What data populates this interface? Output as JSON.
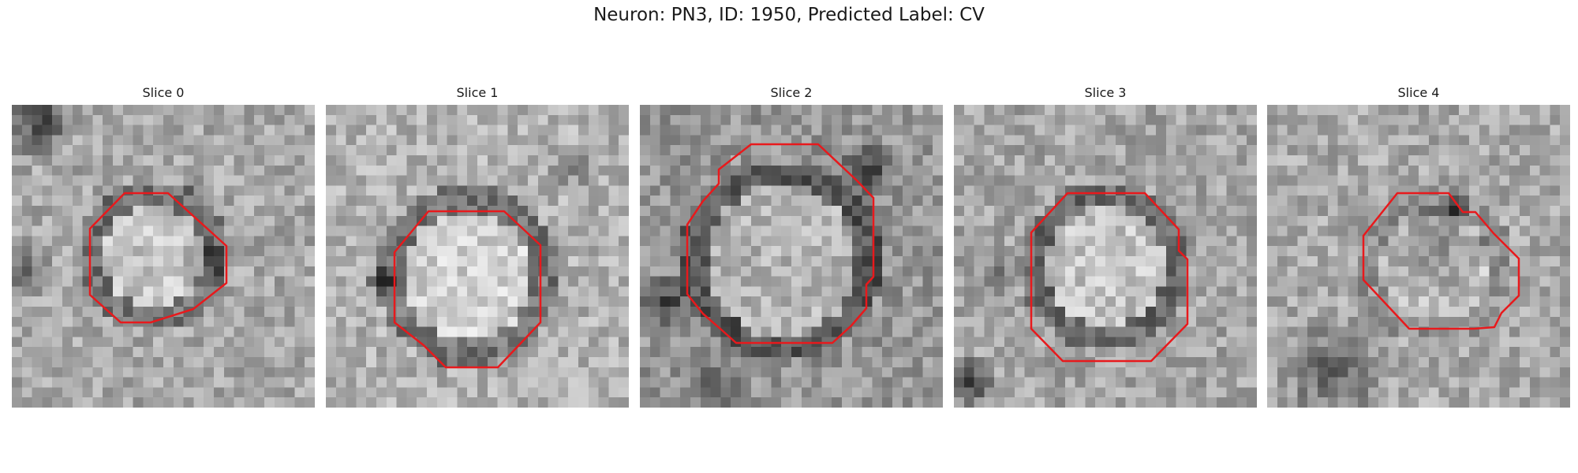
{
  "figure": {
    "title": "Neuron: PN3, ID: 1950, Predicted Label: CV"
  },
  "colors": {
    "contour": "#e8191c",
    "background": "#ffffff"
  },
  "slices": [
    {
      "label": "Slice 0"
    },
    {
      "label": "Slice 1"
    },
    {
      "label": "Slice 2"
    },
    {
      "label": "Slice 3"
    },
    {
      "label": "Slice 4"
    }
  ]
}
